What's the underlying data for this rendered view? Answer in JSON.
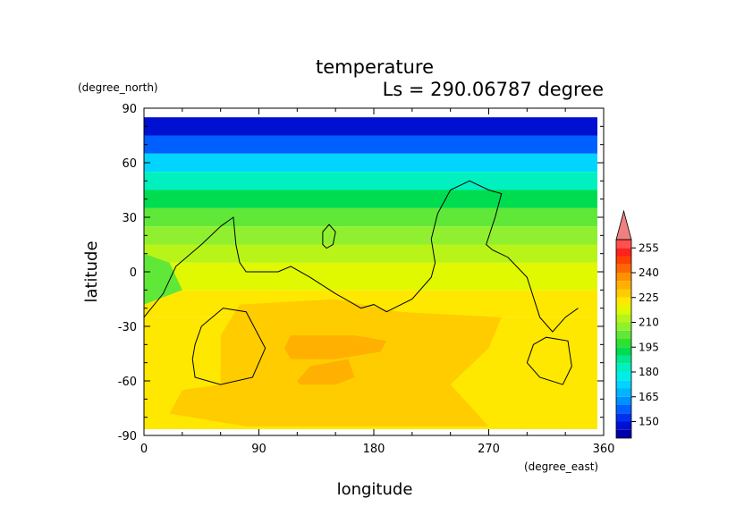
{
  "chart_data": {
    "type": "heatmap",
    "title": "temperature",
    "subtitle": "Ls = 290.06787 degree",
    "xlabel": "longitude",
    "ylabel": "latitude",
    "xunit": "(degree_east)",
    "yunit": "(degree_north)",
    "xlim": [
      0,
      360
    ],
    "ylim": [
      -90,
      90
    ],
    "xticks": [
      0,
      90,
      180,
      270,
      360
    ],
    "yticks": [
      90,
      60,
      30,
      0,
      -30,
      -60,
      -90
    ],
    "colorbar": {
      "labels": [
        255,
        240,
        225,
        210,
        195,
        180,
        165,
        150
      ],
      "levels": [
        {
          "min": 140,
          "max": 145,
          "color": "#0000a8"
        },
        {
          "min": 145,
          "max": 150,
          "color": "#0010d0"
        },
        {
          "min": 150,
          "max": 155,
          "color": "#0030f0"
        },
        {
          "min": 155,
          "max": 160,
          "color": "#0060ff"
        },
        {
          "min": 160,
          "max": 165,
          "color": "#0090ff"
        },
        {
          "min": 165,
          "max": 170,
          "color": "#00b4ff"
        },
        {
          "min": 170,
          "max": 175,
          "color": "#00d4ff"
        },
        {
          "min": 175,
          "max": 180,
          "color": "#00eee8"
        },
        {
          "min": 180,
          "max": 185,
          "color": "#00f0c0"
        },
        {
          "min": 185,
          "max": 190,
          "color": "#00e890"
        },
        {
          "min": 190,
          "max": 195,
          "color": "#00dc50"
        },
        {
          "min": 195,
          "max": 200,
          "color": "#30e030"
        },
        {
          "min": 200,
          "max": 205,
          "color": "#60e838"
        },
        {
          "min": 205,
          "max": 210,
          "color": "#90f030"
        },
        {
          "min": 210,
          "max": 215,
          "color": "#b8f418"
        },
        {
          "min": 215,
          "max": 220,
          "color": "#e0f800"
        },
        {
          "min": 220,
          "max": 225,
          "color": "#ffe800"
        },
        {
          "min": 225,
          "max": 230,
          "color": "#ffcc00"
        },
        {
          "min": 230,
          "max": 235,
          "color": "#ffb000"
        },
        {
          "min": 235,
          "max": 240,
          "color": "#ff9000"
        },
        {
          "min": 240,
          "max": 245,
          "color": "#ff6800"
        },
        {
          "min": 245,
          "max": 250,
          "color": "#ff4000"
        },
        {
          "min": 250,
          "max": 255,
          "color": "#ff2020"
        },
        {
          "min": 255,
          "max": 260,
          "color": "#ff5050"
        }
      ],
      "overflow_color": "#f08080"
    },
    "latitude_bands": [
      {
        "lat_min": 75,
        "lat_max": 85,
        "temperature": 145
      },
      {
        "lat_min": 65,
        "lat_max": 75,
        "temperature": 155
      },
      {
        "lat_min": 55,
        "lat_max": 65,
        "temperature": 170
      },
      {
        "lat_min": 45,
        "lat_max": 55,
        "temperature": 180
      },
      {
        "lat_min": 35,
        "lat_max": 45,
        "temperature": 190
      },
      {
        "lat_min": 25,
        "lat_max": 35,
        "temperature": 200
      },
      {
        "lat_min": 15,
        "lat_max": 25,
        "temperature": 208
      },
      {
        "lat_min": 5,
        "lat_max": 15,
        "temperature": 213
      },
      {
        "lat_min": -10,
        "lat_max": 5,
        "temperature": 218
      },
      {
        "lat_min": -25,
        "lat_max": -10,
        "temperature": 222
      },
      {
        "lat_min": -90,
        "lat_max": -25,
        "temperature": 222
      }
    ],
    "regions": [
      {
        "temperature": 202,
        "points": [
          [
            0,
            -18
          ],
          [
            30,
            -10
          ],
          [
            20,
            5
          ],
          [
            0,
            10
          ]
        ]
      },
      {
        "temperature": 228,
        "points": [
          [
            75,
            -18
          ],
          [
            150,
            -15
          ],
          [
            200,
            -22
          ],
          [
            280,
            -25
          ],
          [
            270,
            -42
          ],
          [
            240,
            -62
          ],
          [
            270,
            -85
          ],
          [
            80,
            -85
          ],
          [
            20,
            -78
          ],
          [
            30,
            -65
          ],
          [
            60,
            -62
          ],
          [
            60,
            -35
          ]
        ]
      },
      {
        "temperature": 233,
        "points": [
          [
            110,
            -42
          ],
          [
            115,
            -35
          ],
          [
            165,
            -35
          ],
          [
            190,
            -38
          ],
          [
            185,
            -44
          ],
          [
            150,
            -48
          ],
          [
            115,
            -48
          ]
        ]
      },
      {
        "temperature": 233,
        "points": [
          [
            120,
            -60
          ],
          [
            130,
            -52
          ],
          [
            160,
            -48
          ],
          [
            165,
            -58
          ],
          [
            150,
            -62
          ],
          [
            122,
            -62
          ]
        ]
      }
    ],
    "contours": [
      [
        [
          0,
          -25
        ],
        [
          15,
          -12
        ],
        [
          25,
          3
        ],
        [
          45,
          15
        ],
        [
          60,
          25
        ],
        [
          70,
          30
        ],
        [
          72,
          15
        ],
        [
          75,
          5
        ],
        [
          80,
          0
        ],
        [
          105,
          0
        ],
        [
          115,
          3
        ],
        [
          130,
          -3
        ],
        [
          150,
          -12
        ],
        [
          170,
          -20
        ],
        [
          180,
          -18
        ],
        [
          190,
          -22
        ],
        [
          210,
          -15
        ],
        [
          225,
          -3
        ],
        [
          228,
          5
        ],
        [
          225,
          18
        ],
        [
          230,
          32
        ],
        [
          240,
          45
        ],
        [
          255,
          50
        ],
        [
          270,
          45
        ],
        [
          280,
          43
        ],
        [
          275,
          30
        ],
        [
          268,
          15
        ],
        [
          273,
          12
        ],
        [
          285,
          8
        ],
        [
          300,
          -3
        ],
        [
          310,
          -25
        ],
        [
          320,
          -33
        ],
        [
          330,
          -25
        ],
        [
          340,
          -20
        ]
      ],
      [
        [
          140,
          22
        ],
        [
          145,
          26
        ],
        [
          150,
          22
        ],
        [
          148,
          15
        ],
        [
          143,
          13
        ],
        [
          140,
          15
        ],
        [
          140,
          22
        ]
      ],
      [
        [
          40,
          -40
        ],
        [
          45,
          -30
        ],
        [
          62,
          -20
        ],
        [
          80,
          -22
        ],
        [
          95,
          -42
        ],
        [
          85,
          -58
        ],
        [
          60,
          -62
        ],
        [
          40,
          -58
        ],
        [
          38,
          -48
        ],
        [
          40,
          -40
        ]
      ],
      [
        [
          300,
          -50
        ],
        [
          305,
          -40
        ],
        [
          315,
          -36
        ],
        [
          332,
          -38
        ],
        [
          335,
          -52
        ],
        [
          328,
          -62
        ],
        [
          310,
          -58
        ],
        [
          300,
          -50
        ]
      ]
    ]
  }
}
